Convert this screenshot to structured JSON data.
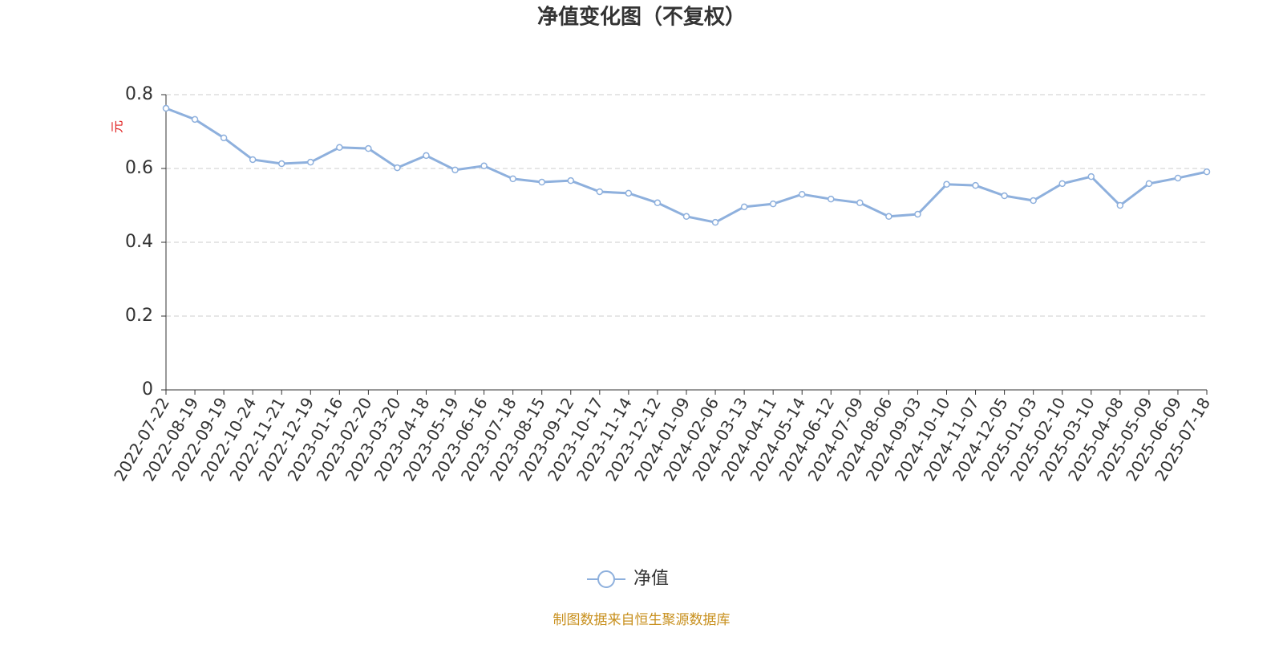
{
  "chart_data": {
    "type": "line",
    "title": "净值变化图（不复权）",
    "y_label": "元",
    "x": [
      "2022-07-22",
      "2022-08-19",
      "2022-09-19",
      "2022-10-24",
      "2022-11-21",
      "2022-12-19",
      "2023-01-16",
      "2023-02-20",
      "2023-03-20",
      "2023-04-18",
      "2023-05-19",
      "2023-06-16",
      "2023-07-18",
      "2023-08-15",
      "2023-09-12",
      "2023-10-17",
      "2023-11-14",
      "2023-12-12",
      "2024-01-09",
      "2024-02-06",
      "2024-03-13",
      "2024-04-11",
      "2024-05-14",
      "2024-06-12",
      "2024-07-09",
      "2024-08-06",
      "2024-09-03",
      "2024-10-10",
      "2024-11-07",
      "2024-12-05",
      "2025-01-03",
      "2025-02-10",
      "2025-03-10",
      "2025-04-08",
      "2025-05-09",
      "2025-06-09",
      "2025-07-18"
    ],
    "series": [
      {
        "name": "净值",
        "color": "#8eb0dd",
        "values": [
          0.763,
          0.733,
          0.683,
          0.624,
          0.613,
          0.617,
          0.657,
          0.654,
          0.602,
          0.635,
          0.596,
          0.607,
          0.572,
          0.563,
          0.567,
          0.537,
          0.533,
          0.507,
          0.47,
          0.454,
          0.496,
          0.504,
          0.53,
          0.517,
          0.507,
          0.47,
          0.476,
          0.557,
          0.554,
          0.526,
          0.513,
          0.559,
          0.578,
          0.5,
          0.559,
          0.574,
          0.591
        ]
      }
    ],
    "ylim": [
      0,
      0.8
    ],
    "yticks": [
      0,
      0.2,
      0.4,
      0.6,
      0.8
    ],
    "grid": true,
    "source": "制图数据来自恒生聚源数据库"
  }
}
